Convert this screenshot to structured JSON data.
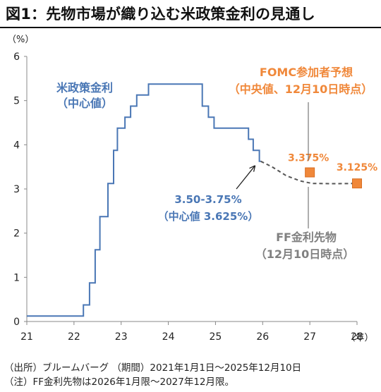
{
  "title": "図1：先物市場が織り込む米政策金利の見通し",
  "chart_data": {
    "type": "line",
    "ylabel": "（%）",
    "xlabel": "（年）",
    "xlim": [
      21,
      28
    ],
    "ylim": [
      0,
      6
    ],
    "x_ticks": [
      "21",
      "22",
      "23",
      "24",
      "25",
      "26",
      "27",
      "28"
    ],
    "y_ticks": [
      "0",
      "1",
      "2",
      "3",
      "4",
      "5",
      "6"
    ],
    "grid": false,
    "colors": {
      "policy": "#4a77b5",
      "futures": "#555555",
      "fomc": "#f0883a",
      "axis": "#888888"
    },
    "series": [
      {
        "name": "米政策金利",
        "name_line2": "（中心値）",
        "style": "step",
        "points": [
          [
            21.0,
            0.125
          ],
          [
            22.2,
            0.375
          ],
          [
            22.33,
            0.875
          ],
          [
            22.45,
            1.625
          ],
          [
            22.55,
            2.375
          ],
          [
            22.72,
            3.125
          ],
          [
            22.84,
            3.875
          ],
          [
            22.92,
            4.375
          ],
          [
            23.08,
            4.625
          ],
          [
            23.2,
            4.875
          ],
          [
            23.33,
            5.125
          ],
          [
            23.58,
            5.375
          ],
          [
            24.72,
            4.875
          ],
          [
            24.85,
            4.625
          ],
          [
            24.97,
            4.375
          ],
          [
            25.7,
            4.125
          ],
          [
            25.8,
            3.875
          ],
          [
            25.93,
            3.625
          ],
          [
            25.96,
            3.625
          ]
        ]
      },
      {
        "name": "FF金利先物",
        "name_line2": "（12月10日時点）",
        "style": "dashed",
        "points": [
          [
            25.96,
            3.625
          ],
          [
            26.2,
            3.5
          ],
          [
            26.5,
            3.3
          ],
          [
            26.8,
            3.18
          ],
          [
            27.05,
            3.125
          ],
          [
            27.5,
            3.12
          ],
          [
            28.0,
            3.125
          ]
        ]
      },
      {
        "name": "FOMC参加者予想",
        "name_line2": "（中央値、12月10日時点）",
        "style": "marker",
        "points": [
          [
            27.0,
            3.375
          ],
          [
            28.0,
            3.125
          ]
        ],
        "labels": [
          "3.375%",
          "3.125%"
        ]
      }
    ],
    "annotations": {
      "current_rate": "3.50-3.75%",
      "current_mid": "（中心値 3.625%）"
    }
  },
  "footnotes": [
    "（出所）ブルームバーグ （期間）2021年1月1日～2025年12月10日",
    "（注）FF金利先物は2026年1月限～2027年12月限。"
  ]
}
